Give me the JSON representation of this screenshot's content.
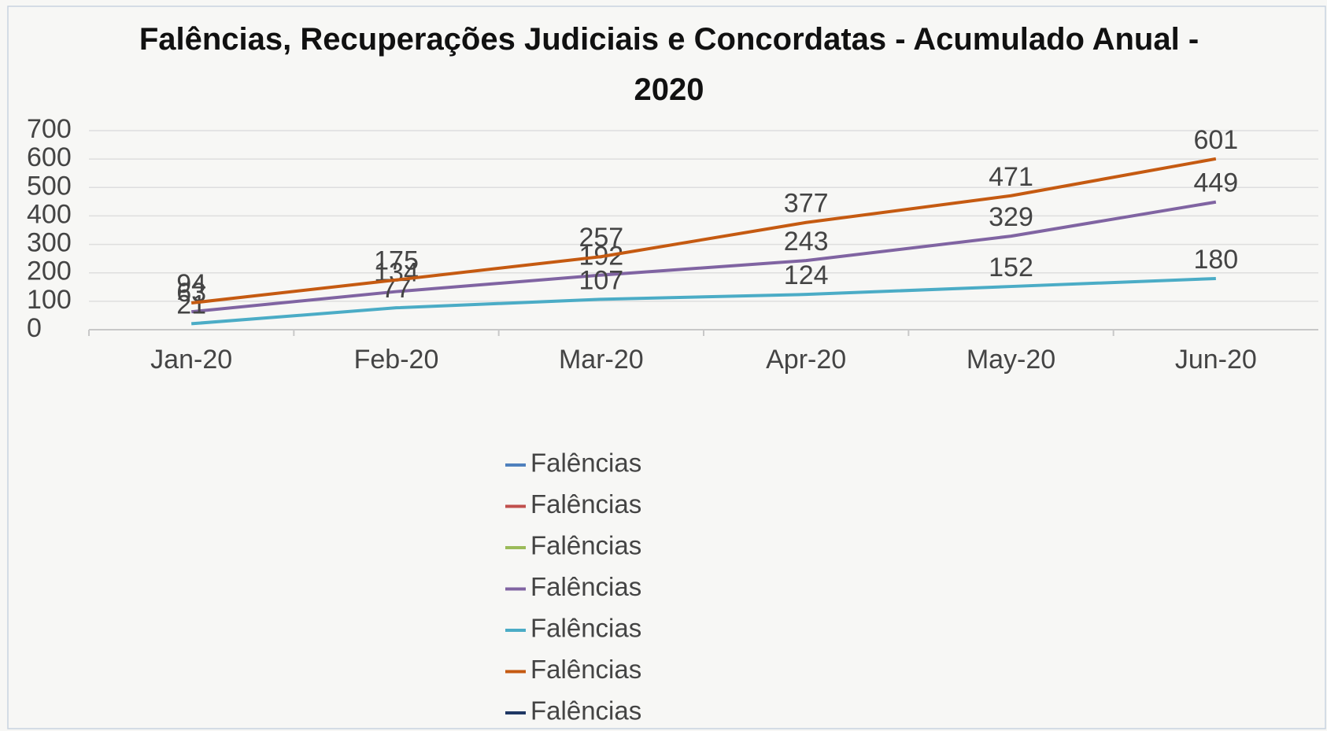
{
  "chart_data": {
    "type": "line",
    "title": "Falências, Recuperações Judiciais e Concordatas - Acumulado Anual - 2020",
    "categories": [
      "Jan-20",
      "Feb-20",
      "Mar-20",
      "Apr-20",
      "May-20",
      "Jun-20"
    ],
    "series": [
      {
        "name": "Falências",
        "color": "#4f81bd",
        "values": [
          null,
          null,
          null,
          null,
          null,
          null
        ]
      },
      {
        "name": "Falências",
        "color": "#c0504d",
        "values": [
          null,
          null,
          null,
          null,
          null,
          null
        ]
      },
      {
        "name": "Falências",
        "color": "#9bbb59",
        "values": [
          null,
          null,
          null,
          null,
          null,
          null
        ]
      },
      {
        "name": "Falências",
        "color": "#8064a2",
        "values": [
          63,
          134,
          192,
          243,
          329,
          449
        ]
      },
      {
        "name": "Falências",
        "color": "#4bacc6",
        "values": [
          21,
          77,
          107,
          124,
          152,
          180
        ]
      },
      {
        "name": "Falências",
        "color": "#c55a11",
        "values": [
          94,
          175,
          257,
          377,
          471,
          601
        ]
      },
      {
        "name": "Falências",
        "color": "#1f3864",
        "values": [
          null,
          null,
          null,
          null,
          null,
          null
        ]
      }
    ],
    "ylim": [
      0,
      700
    ],
    "yticks": [
      0,
      100,
      200,
      300,
      400,
      500,
      600,
      700
    ],
    "grid": true,
    "data_labels": true,
    "legend": "bottom"
  }
}
